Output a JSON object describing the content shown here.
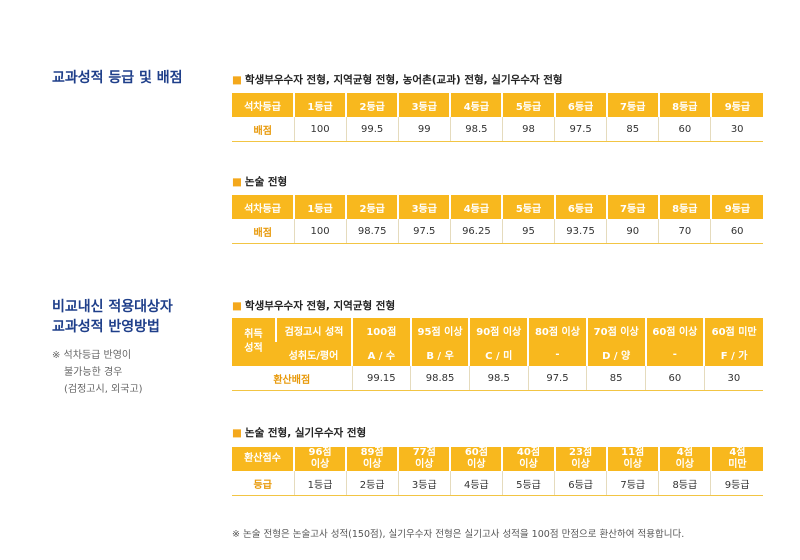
{
  "sections": [
    {
      "title": "교과성적 등급 및 배점"
    },
    {
      "title_line1": "비교내신 적용대상자",
      "title_line2": "교과성적 반영방법",
      "note_lines": [
        "※ 석차등급 반영이",
        "불가능한 경우",
        "(검정고시, 외국고)"
      ]
    }
  ],
  "table1": {
    "subtitle": "학생부우수자 전형, 지역균형 전형, 농어촌(교과) 전형, 실기우수자 전형",
    "headers": [
      "석차등급",
      "1등급",
      "2등급",
      "3등급",
      "4등급",
      "5등급",
      "6등급",
      "7등급",
      "8등급",
      "9등급"
    ],
    "row_label": "배점",
    "values": [
      "100",
      "99.5",
      "99",
      "98.5",
      "98",
      "97.5",
      "85",
      "60",
      "30"
    ]
  },
  "table2": {
    "subtitle": "논술 전형",
    "headers": [
      "석차등급",
      "1등급",
      "2등급",
      "3등급",
      "4등급",
      "5등급",
      "6등급",
      "7등급",
      "8등급",
      "9등급"
    ],
    "row_label": "배점",
    "values": [
      "100",
      "98.75",
      "97.5",
      "96.25",
      "95",
      "93.75",
      "90",
      "70",
      "60"
    ]
  },
  "table3": {
    "subtitle": "학생부우수자 전형, 지역균형 전형",
    "corner": "취득 성적",
    "row1_label": "검정고시 성적",
    "row1": [
      "100점",
      "95점 이상",
      "90점 이상",
      "80점 이상",
      "70점 이상",
      "60점 이상",
      "60점 미만"
    ],
    "row2_label": "성취도/평어",
    "row2": [
      "A / 수",
      "B / 우",
      "C / 미",
      "-",
      "D / 양",
      "-",
      "F / 가"
    ],
    "row3_label": "환산배점",
    "row3": [
      "99.15",
      "98.85",
      "98.5",
      "97.5",
      "85",
      "60",
      "30"
    ]
  },
  "table4": {
    "subtitle": "논술 전형, 실기우수자 전형",
    "corner": "환산점수",
    "headers": [
      [
        "96점",
        "이상"
      ],
      [
        "89점",
        "이상"
      ],
      [
        "77점",
        "이상"
      ],
      [
        "60점",
        "이상"
      ],
      [
        "40점",
        "이상"
      ],
      [
        "23점",
        "이상"
      ],
      [
        "11점",
        "이상"
      ],
      [
        "4점",
        "이상"
      ],
      [
        "4점",
        "미만"
      ]
    ],
    "row_label": "등급",
    "values": [
      "1등급",
      "2등급",
      "3등급",
      "4등급",
      "5등급",
      "6등급",
      "7등급",
      "8등급",
      "9등급"
    ]
  },
  "footnote": "※ 논술 전형은 논술고사 성적(150점), 실기우수자 전형은 실기고사 성적을 100점 만점으로 환산하여 적용합니다.",
  "colors": {
    "accent": "#f8b81e",
    "title": "#1f3f8a",
    "row_label": "#e89a0c"
  }
}
